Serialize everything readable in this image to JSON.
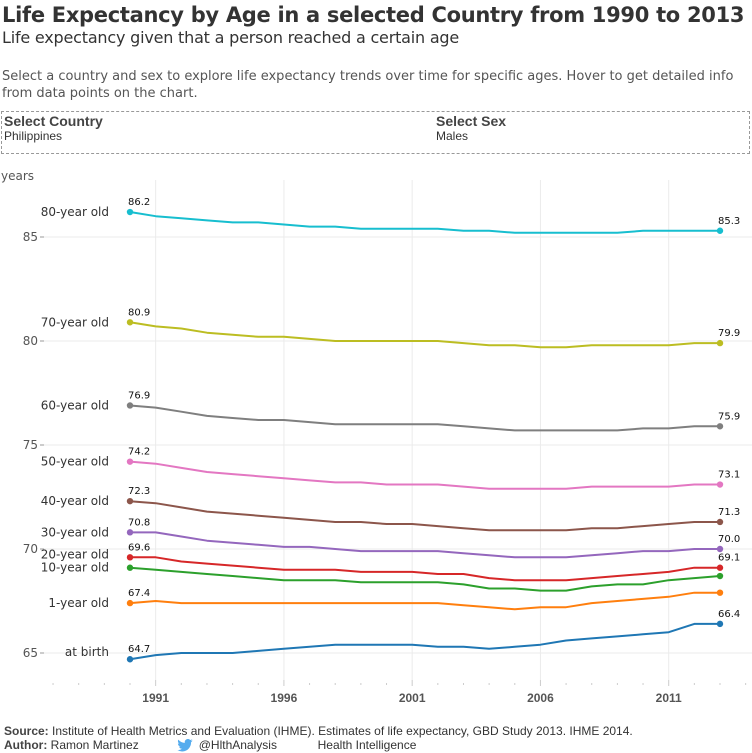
{
  "header": {
    "title": "Life Expectancy by Age in a selected Country from 1990 to 2013",
    "subtitle": "Life expectancy given that a person reached a certain age",
    "description": "Select a country and sex to explore life expectancy trends over time for specific ages. Hover to get detailed info from data points on the chart."
  },
  "filters": {
    "country": {
      "label": "Select Country",
      "value": "Philippines"
    },
    "sex": {
      "label": "Select Sex",
      "value": "Males"
    }
  },
  "footer": {
    "source_label": "Source:",
    "source_text": "Institute of Health Metrics and Evaluation (IHME). Estimates of life expectancy, GBD Study 2013. IHME 2014.",
    "author_label": "Author:",
    "author_name": "Ramon Martinez",
    "twitter_handle": "@HlthAnalysis",
    "org": "Health Intelligence"
  },
  "chart_data": {
    "type": "line",
    "title": "Life Expectancy by Age in a selected Country from 1990 to 2013",
    "xlabel": "",
    "ylabel": "years",
    "xlim": [
      1990,
      2013
    ],
    "ylim": [
      63.0,
      87.0
    ],
    "yticks": [
      65,
      70,
      75,
      80,
      85
    ],
    "xticks": [
      1991,
      1996,
      2001,
      2006,
      2011
    ],
    "grid": true,
    "legend": "inline-left",
    "x": [
      1990,
      1991,
      1992,
      1993,
      1994,
      1995,
      1996,
      1997,
      1998,
      1999,
      2000,
      2001,
      2002,
      2003,
      2004,
      2005,
      2006,
      2007,
      2008,
      2009,
      2010,
      2011,
      2012,
      2013
    ],
    "series": [
      {
        "name": "80-year old",
        "color": "#17becf",
        "start_label": "86.2",
        "end_label": "85.3",
        "values": [
          86.2,
          86.0,
          85.9,
          85.8,
          85.7,
          85.7,
          85.6,
          85.5,
          85.5,
          85.4,
          85.4,
          85.4,
          85.4,
          85.3,
          85.3,
          85.2,
          85.2,
          85.2,
          85.2,
          85.2,
          85.3,
          85.3,
          85.3,
          85.3
        ]
      },
      {
        "name": "70-year old",
        "color": "#bcbd22",
        "start_label": "80.9",
        "end_label": "79.9",
        "values": [
          80.9,
          80.7,
          80.6,
          80.4,
          80.3,
          80.2,
          80.2,
          80.1,
          80.0,
          80.0,
          80.0,
          80.0,
          80.0,
          79.9,
          79.8,
          79.8,
          79.7,
          79.7,
          79.8,
          79.8,
          79.8,
          79.8,
          79.9,
          79.9
        ]
      },
      {
        "name": "60-year old",
        "color": "#7f7f7f",
        "start_label": "76.9",
        "end_label": "75.9",
        "values": [
          76.9,
          76.8,
          76.6,
          76.4,
          76.3,
          76.2,
          76.2,
          76.1,
          76.0,
          76.0,
          76.0,
          76.0,
          76.0,
          75.9,
          75.8,
          75.7,
          75.7,
          75.7,
          75.7,
          75.7,
          75.8,
          75.8,
          75.9,
          75.9
        ]
      },
      {
        "name": "50-year old",
        "color": "#e377c2",
        "start_label": "74.2",
        "end_label": "73.1",
        "values": [
          74.2,
          74.1,
          73.9,
          73.7,
          73.6,
          73.5,
          73.4,
          73.3,
          73.2,
          73.2,
          73.1,
          73.1,
          73.1,
          73.0,
          72.9,
          72.9,
          72.9,
          72.9,
          73.0,
          73.0,
          73.0,
          73.0,
          73.1,
          73.1
        ]
      },
      {
        "name": "40-year old",
        "color": "#8c564b",
        "start_label": "72.3",
        "end_label": "71.3",
        "values": [
          72.3,
          72.2,
          72.0,
          71.8,
          71.7,
          71.6,
          71.5,
          71.4,
          71.3,
          71.3,
          71.2,
          71.2,
          71.1,
          71.0,
          70.9,
          70.9,
          70.9,
          70.9,
          71.0,
          71.0,
          71.1,
          71.2,
          71.3,
          71.3
        ]
      },
      {
        "name": "30-year old",
        "color": "#9467bd",
        "start_label": "70.8",
        "end_label": "70.0",
        "values": [
          70.8,
          70.8,
          70.6,
          70.4,
          70.3,
          70.2,
          70.1,
          70.1,
          70.0,
          69.9,
          69.9,
          69.9,
          69.9,
          69.8,
          69.7,
          69.6,
          69.6,
          69.6,
          69.7,
          69.8,
          69.9,
          69.9,
          70.0,
          70.0
        ]
      },
      {
        "name": "20-year old",
        "color": "#d62728",
        "start_label": "69.6",
        "end_label": "69.1",
        "values": [
          69.6,
          69.6,
          69.4,
          69.3,
          69.2,
          69.1,
          69.0,
          69.0,
          69.0,
          68.9,
          68.9,
          68.9,
          68.8,
          68.8,
          68.6,
          68.5,
          68.5,
          68.5,
          68.6,
          68.7,
          68.8,
          68.9,
          69.1,
          69.1
        ]
      },
      {
        "name": "10-year old",
        "color": "#2ca02c",
        "start_label": "",
        "end_label": "",
        "values": [
          69.1,
          69.0,
          68.9,
          68.8,
          68.7,
          68.6,
          68.5,
          68.5,
          68.5,
          68.4,
          68.4,
          68.4,
          68.4,
          68.3,
          68.1,
          68.1,
          68.0,
          68.0,
          68.2,
          68.3,
          68.3,
          68.5,
          68.6,
          68.7
        ]
      },
      {
        "name": "1-year old",
        "color": "#ff7f0e",
        "start_label": "67.4",
        "end_label": "",
        "values": [
          67.4,
          67.5,
          67.4,
          67.4,
          67.4,
          67.4,
          67.4,
          67.4,
          67.4,
          67.4,
          67.4,
          67.4,
          67.4,
          67.3,
          67.2,
          67.1,
          67.2,
          67.2,
          67.4,
          67.5,
          67.6,
          67.7,
          67.9,
          67.9
        ]
      },
      {
        "name": "at birth",
        "color": "#1f77b4",
        "start_label": "64.7",
        "end_label": "66.4",
        "values": [
          64.7,
          64.9,
          65.0,
          65.0,
          65.0,
          65.1,
          65.2,
          65.3,
          65.4,
          65.4,
          65.4,
          65.4,
          65.3,
          65.3,
          65.2,
          65.3,
          65.4,
          65.6,
          65.7,
          65.8,
          65.9,
          66.0,
          66.4,
          66.4
        ]
      }
    ]
  }
}
